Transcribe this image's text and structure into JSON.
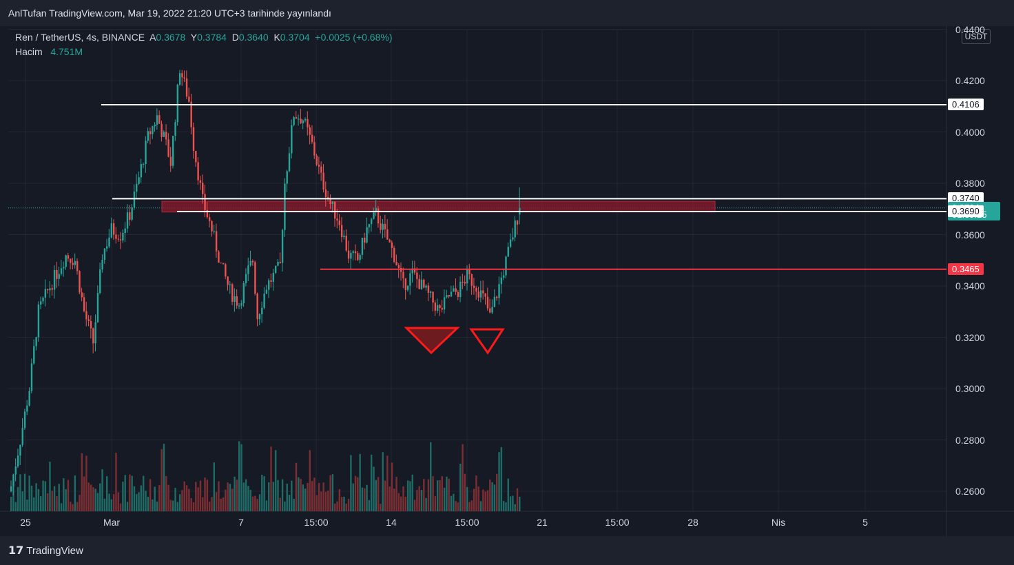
{
  "header": {
    "published": "AnlTufan TradingView.com, Mar 19, 2022 21:20 UTC+3 tarihinde yayınlandı"
  },
  "legend": {
    "symbol": "Ren / TetherUS, 4s, BINANCE",
    "open_label": "A",
    "open": "0.3678",
    "high_label": "Y",
    "high": "0.3784",
    "low_label": "D",
    "low": "0.3640",
    "close_label": "K",
    "close": "0.3704",
    "change": "+0.0025 (+0.68%)",
    "volume_label": "Hacim",
    "volume": "4.751M"
  },
  "currency_button": "USDT",
  "footer": {
    "brand": "TradingView"
  },
  "colors": {
    "up": "#26a69a",
    "down": "#ef5350",
    "up_volume": "#1f6b66",
    "down_volume": "#7d2e33",
    "zone": "#8e1b2c",
    "line_white": "#ffffff",
    "line_red": "#f23645"
  },
  "chart_data": {
    "type": "candlestick",
    "ylim": [
      0.255,
      0.445
    ],
    "y_ticks": [
      "0.2600",
      "0.2800",
      "0.3000",
      "0.3200",
      "0.3400",
      "0.3600",
      "0.3800",
      "0.4000",
      "0.4200",
      "0.4400"
    ],
    "x_ticks": [
      "25",
      "Mar",
      "7",
      "15:00",
      "14",
      "15:00",
      "21",
      "15:00",
      "28",
      "Nis",
      "5"
    ],
    "price_labels": [
      {
        "text": "0.4106",
        "value": 0.4106,
        "style": "white"
      },
      {
        "text": "0.3740",
        "value": 0.374,
        "style": "white"
      },
      {
        "text": "0.3704",
        "value": 0.3704,
        "style": "current"
      },
      {
        "text": "01:39:25",
        "value": 0.3681,
        "style": "timer"
      },
      {
        "text": "0.3690",
        "value": 0.369,
        "style": "white"
      },
      {
        "text": "0.3465",
        "value": 0.3465,
        "style": "red"
      }
    ],
    "horizontal_lines": [
      {
        "value": 0.4106,
        "color": "white"
      },
      {
        "value": 0.374,
        "color": "white"
      },
      {
        "value": 0.369,
        "color": "white"
      },
      {
        "value": 0.3465,
        "color": "red"
      }
    ],
    "zone": {
      "from": 0.3688,
      "to": 0.373
    },
    "volume": "4.751M",
    "last_candle": {
      "open": 0.3678,
      "high": 0.3784,
      "low": 0.364,
      "close": 0.3704
    }
  }
}
